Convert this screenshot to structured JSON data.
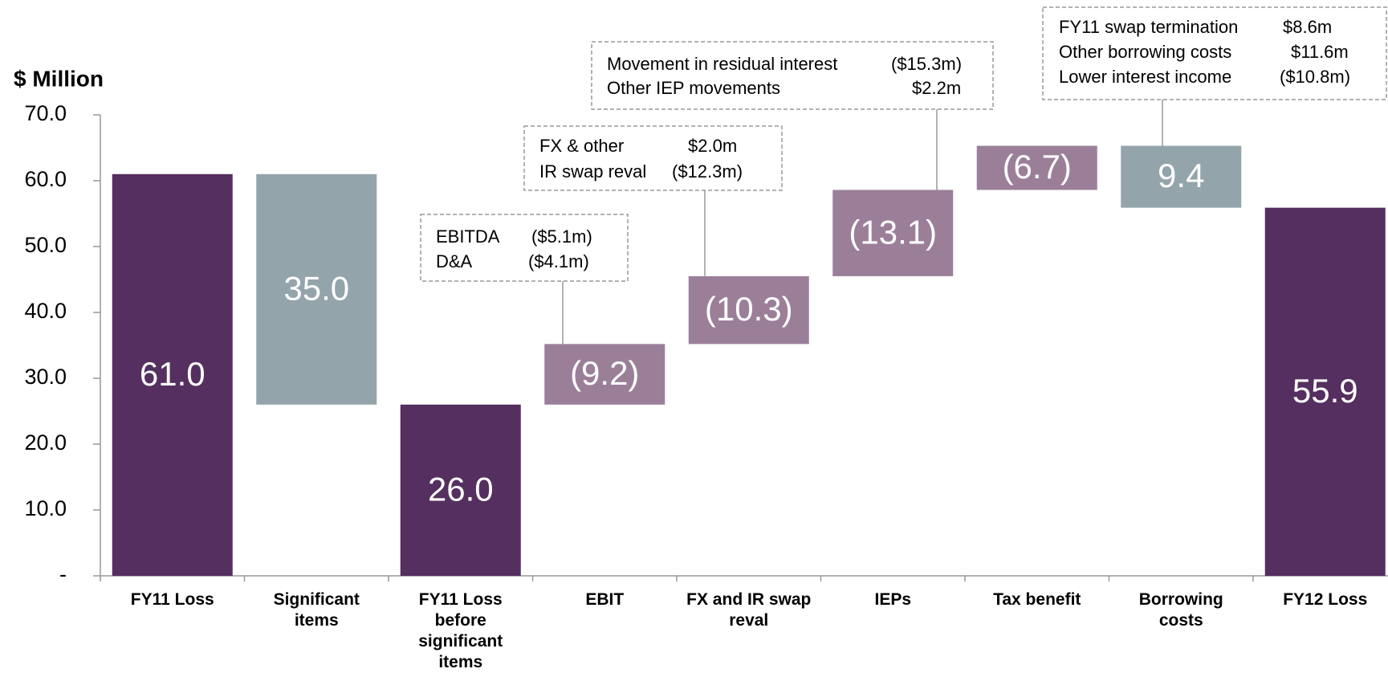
{
  "chart_data": {
    "type": "waterfall",
    "y_axis_label": "$ Million",
    "categories": [
      "FY11 Loss",
      "Significant items",
      "FY11 Loss before significant items",
      "EBIT",
      "FX and IR swap reval",
      "IEPs",
      "Tax benefit",
      "Borrowing costs",
      "FY12 Loss"
    ],
    "measures": [
      "absolute",
      "relative",
      "absolute",
      "relative",
      "relative",
      "relative",
      "relative",
      "relative",
      "absolute"
    ],
    "values": [
      61.0,
      -35.0,
      26.0,
      9.2,
      10.3,
      13.1,
      6.7,
      -9.4,
      55.9
    ],
    "value_labels": [
      "61.0",
      "35.0",
      "26.0",
      "(9.2)",
      "(10.3)",
      "(13.1)",
      "(6.7)",
      "9.4",
      "55.9"
    ],
    "colors": [
      "#542f5f",
      "#93a4aa",
      "#542f5f",
      "#9b7f99",
      "#9b7f99",
      "#9b7f99",
      "#9b7f99",
      "#93a4aa",
      "#542f5f"
    ],
    "ylim": [
      0,
      70
    ],
    "yticks": [
      {
        "value": 0,
        "label": "-"
      },
      {
        "value": 10,
        "label": "10.0"
      },
      {
        "value": 20,
        "label": "20.0"
      },
      {
        "value": 30,
        "label": "30.0"
      },
      {
        "value": 40,
        "label": "40.0"
      },
      {
        "value": 50,
        "label": "50.0"
      },
      {
        "value": 60,
        "label": "60.0"
      },
      {
        "value": 70,
        "label": "70.0"
      }
    ],
    "annotations": [
      {
        "category": 3,
        "lines": [
          [
            "EBITDA",
            "($5.1m)"
          ],
          [
            "D&A",
            "($4.1m)"
          ]
        ]
      },
      {
        "category": 4,
        "lines": [
          [
            "FX & other",
            "$2.0m"
          ],
          [
            "IR swap reval",
            "($12.3m)"
          ]
        ]
      },
      {
        "category": 5,
        "lines": [
          [
            "Movement in residual interest",
            "($15.3m)"
          ],
          [
            "Other IEP movements",
            "$2.2m"
          ]
        ]
      },
      {
        "category": 7,
        "lines": [
          [
            "FY11 swap termination",
            "$8.6m"
          ],
          [
            "Other borrowing costs",
            "$11.6m"
          ],
          [
            "Lower interest income",
            "($10.8m)"
          ]
        ]
      }
    ]
  }
}
